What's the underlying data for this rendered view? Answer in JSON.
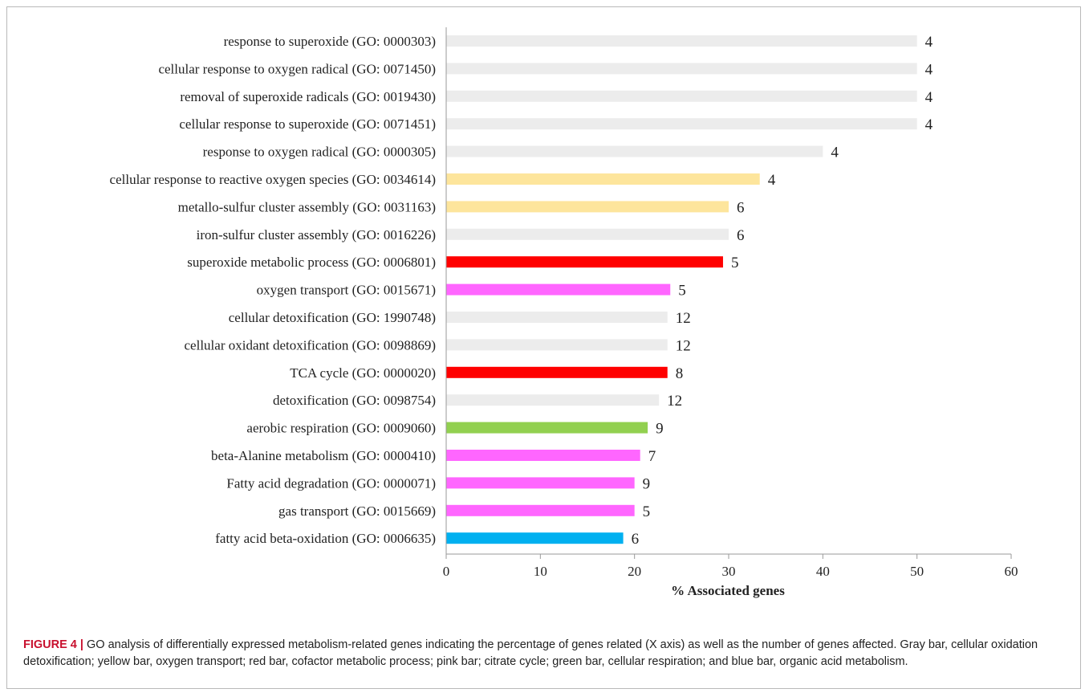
{
  "chart_data": {
    "type": "bar",
    "orientation": "horizontal",
    "xlabel": "% Associated genes",
    "xlim": [
      0,
      60
    ],
    "xticks": [
      0,
      10,
      20,
      30,
      40,
      50,
      60
    ],
    "grid": false,
    "legend": "none",
    "categories": [
      "response to superoxide (GO: 0000303)",
      "cellular response to oxygen radical (GO: 0071450)",
      "removal of superoxide radicals (GO: 0019430)",
      "cellular response to superoxide (GO: 0071451)",
      "response to oxygen radical (GO: 0000305)",
      "cellular response to reactive oxygen species (GO: 0034614)",
      "metallo-sulfur cluster assembly (GO: 0031163)",
      "iron-sulfur cluster assembly (GO: 0016226)",
      "superoxide metabolic process (GO: 0006801)",
      "oxygen transport (GO: 0015671)",
      "cellular detoxification (GO: 1990748)",
      "cellular oxidant detoxification (GO: 0098869)",
      "TCA cycle (GO: 0000020)",
      "detoxification (GO: 0098754)",
      "aerobic respiration (GO: 0009060)",
      "beta-Alanine metabolism (GO: 0000410)",
      "Fatty acid degradation (GO: 0000071)",
      "gas transport (GO: 0015669)",
      "fatty acid beta-oxidation (GO: 0006635)"
    ],
    "values": [
      50,
      50,
      50,
      50,
      40,
      33.3,
      30,
      30,
      29.4,
      23.8,
      23.5,
      23.5,
      23.5,
      22.6,
      21.4,
      20.6,
      20.0,
      20.0,
      18.8
    ],
    "gene_counts": [
      "4",
      "4",
      "4",
      "4",
      "4",
      "4",
      "6",
      "6",
      "5",
      "5",
      "12",
      "12",
      "8",
      "12",
      "9",
      "7",
      "9",
      "5",
      "6"
    ],
    "colors": [
      "#ececec",
      "#ececec",
      "#ececec",
      "#ececec",
      "#ececec",
      "#fde59c",
      "#fde59c",
      "#ececec",
      "#ff0000",
      "#ff66ff",
      "#ececec",
      "#ececec",
      "#ff0000",
      "#ececec",
      "#92d050",
      "#ff66ff",
      "#ff66ff",
      "#ff66ff",
      "#00b0f0"
    ]
  },
  "caption": {
    "label": "FIGURE 4 |",
    "text": " GO analysis of differentially expressed metabolism-related genes indicating the percentage of genes related (X axis) as well as the number of genes affected. Gray bar, cellular oxidation detoxification; yellow bar, oxygen transport; red bar, cofactor metabolic process; pink bar; citrate cycle; green bar, cellular respiration; and blue bar, organic acid metabolism."
  }
}
